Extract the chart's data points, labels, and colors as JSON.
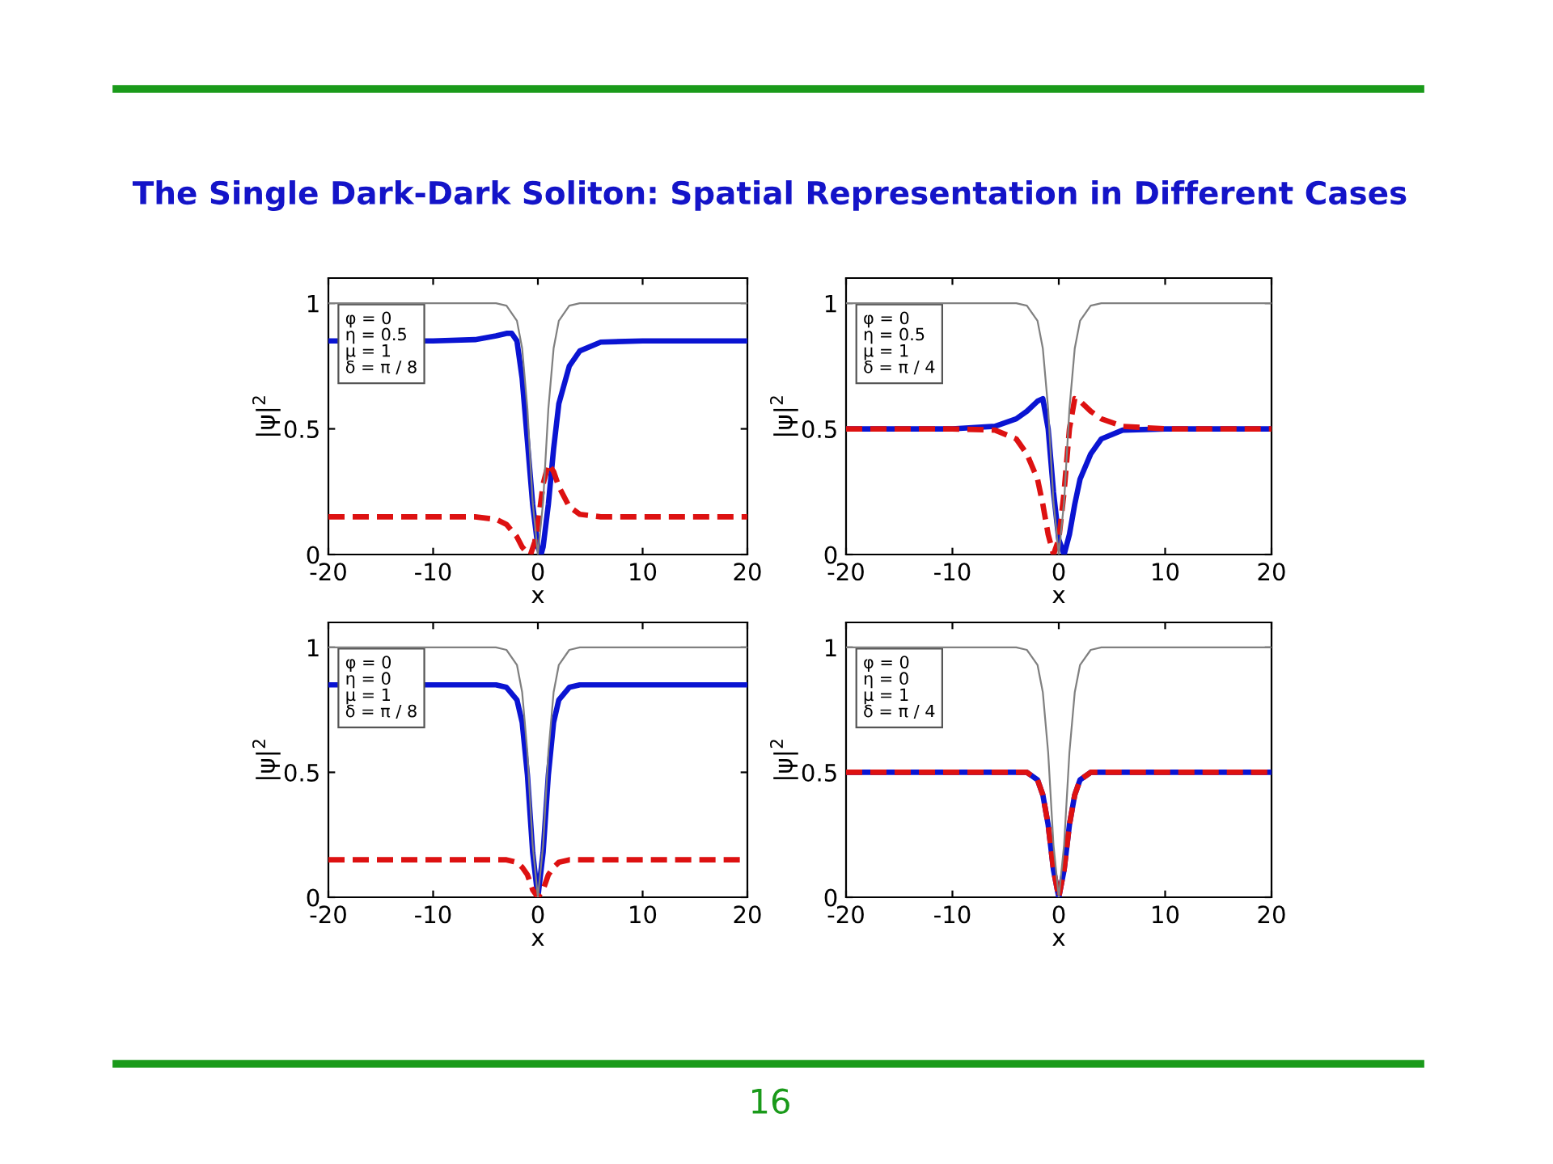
{
  "chart_data": [
    {
      "type": "line",
      "title": "The Single Dark-Dark Soliton: Spatial Representation in Different Cases",
      "xlabel": "x",
      "ylabel": "|ψ|$^{2}$",
      "xlim": [
        -20,
        20
      ],
      "ylim": [
        0,
        1.1
      ],
      "xticks": [
        -20,
        -10,
        0,
        10,
        20
      ],
      "yticks": [
        0,
        0.5,
        1
      ],
      "grid": false,
      "legend": false,
      "annotations": [
        "φ = 0",
        "η = 0.5",
        "μ = 1",
        "δ = π / 8"
      ],
      "series": [
        {
          "color": "#808080",
          "line_style": "solid",
          "x": [
            -20,
            -10,
            -4,
            -3,
            -2,
            -1.5,
            -1,
            -0.5,
            0,
            0.5,
            1,
            1.5,
            2,
            3,
            4,
            10,
            20
          ],
          "values": [
            1,
            1,
            1,
            0.99,
            0.93,
            0.82,
            0.58,
            0.21,
            0,
            0.21,
            0.58,
            0.82,
            0.93,
            0.99,
            1,
            1,
            1
          ]
        },
        {
          "color": "#0a14d2",
          "line_style": "solid",
          "x": [
            -20,
            -10,
            -6,
            -4,
            -3,
            -2.5,
            -2,
            -1.5,
            -1,
            -0.5,
            0,
            0.3,
            0.5,
            1,
            1.5,
            2,
            3,
            4,
            6,
            10,
            20
          ],
          "values": [
            0.85,
            0.85,
            0.855,
            0.87,
            0.88,
            0.88,
            0.85,
            0.7,
            0.45,
            0.2,
            0.03,
            0,
            0.03,
            0.2,
            0.42,
            0.6,
            0.75,
            0.81,
            0.845,
            0.85,
            0.85
          ]
        },
        {
          "color": "#dd1111",
          "line_style": "dashed",
          "x": [
            -20,
            -10,
            -6,
            -4,
            -3,
            -2,
            -1.5,
            -1,
            -0.7,
            -0.3,
            0,
            0.5,
            1,
            1.5,
            2,
            3,
            4,
            6,
            10,
            20
          ],
          "values": [
            0.15,
            0.15,
            0.15,
            0.14,
            0.12,
            0.07,
            0.03,
            0.005,
            0,
            0.05,
            0.12,
            0.28,
            0.36,
            0.33,
            0.27,
            0.19,
            0.16,
            0.15,
            0.15,
            0.15
          ]
        }
      ]
    },
    {
      "type": "line",
      "xlabel": "x",
      "ylabel": "|ψ|$^{2}$",
      "xlim": [
        -20,
        20
      ],
      "ylim": [
        0,
        1.1
      ],
      "xticks": [
        -20,
        -10,
        0,
        10,
        20
      ],
      "yticks": [
        0,
        0.5,
        1
      ],
      "grid": false,
      "legend": false,
      "annotations": [
        "φ = 0",
        "η = 0.5",
        "μ = 1",
        "δ = π / 4"
      ],
      "series": [
        {
          "color": "#808080",
          "line_style": "solid",
          "x": [
            -20,
            -10,
            -4,
            -3,
            -2,
            -1.5,
            -1,
            -0.5,
            0,
            0.5,
            1,
            1.5,
            2,
            3,
            4,
            10,
            20
          ],
          "values": [
            1,
            1,
            1,
            0.99,
            0.93,
            0.82,
            0.58,
            0.21,
            0,
            0.21,
            0.58,
            0.82,
            0.93,
            0.99,
            1,
            1,
            1
          ]
        },
        {
          "color": "#0a14d2",
          "line_style": "solid",
          "x": [
            -20,
            -10,
            -6,
            -4,
            -3,
            -2,
            -1.5,
            -1,
            -0.5,
            0,
            0.5,
            1,
            1.5,
            2,
            3,
            4,
            6,
            10,
            20
          ],
          "values": [
            0.5,
            0.5,
            0.51,
            0.54,
            0.57,
            0.61,
            0.62,
            0.5,
            0.25,
            0.06,
            0,
            0.08,
            0.2,
            0.3,
            0.4,
            0.46,
            0.495,
            0.5,
            0.5
          ]
        },
        {
          "color": "#dd1111",
          "line_style": "dashed",
          "x": [
            -20,
            -10,
            -6,
            -4,
            -3,
            -2,
            -1.5,
            -1,
            -0.5,
            0,
            0.5,
            1,
            1.5,
            2,
            3,
            4,
            6,
            10,
            20
          ],
          "values": [
            0.5,
            0.5,
            0.495,
            0.46,
            0.4,
            0.3,
            0.2,
            0.08,
            0,
            0.06,
            0.25,
            0.5,
            0.62,
            0.61,
            0.57,
            0.54,
            0.51,
            0.5,
            0.5
          ]
        }
      ]
    },
    {
      "type": "line",
      "xlabel": "x",
      "ylabel": "|ψ|$^{2}$",
      "xlim": [
        -20,
        20
      ],
      "ylim": [
        0,
        1.1
      ],
      "xticks": [
        -20,
        -10,
        0,
        10,
        20
      ],
      "yticks": [
        0,
        0.5,
        1
      ],
      "grid": false,
      "legend": false,
      "annotations": [
        "φ = 0",
        "η = 0",
        "μ = 1",
        "δ = π / 8"
      ],
      "series": [
        {
          "color": "#808080",
          "line_style": "solid",
          "x": [
            -20,
            -10,
            -4,
            -3,
            -2,
            -1.5,
            -1,
            -0.5,
            0,
            0.5,
            1,
            1.5,
            2,
            3,
            4,
            10,
            20
          ],
          "values": [
            1,
            1,
            1,
            0.99,
            0.93,
            0.82,
            0.58,
            0.21,
            0,
            0.21,
            0.58,
            0.82,
            0.93,
            0.99,
            1,
            1,
            1
          ]
        },
        {
          "color": "#0a14d2",
          "line_style": "solid",
          "x": [
            -20,
            -10,
            -4,
            -3,
            -2,
            -1.5,
            -1,
            -0.5,
            0,
            0.5,
            1,
            1.5,
            2,
            3,
            4,
            10,
            20
          ],
          "values": [
            0.85,
            0.85,
            0.85,
            0.84,
            0.79,
            0.7,
            0.49,
            0.18,
            0,
            0.18,
            0.49,
            0.7,
            0.79,
            0.84,
            0.85,
            0.85,
            0.85
          ]
        },
        {
          "color": "#dd1111",
          "line_style": "dashed",
          "x": [
            -20,
            -10,
            -4,
            -3,
            -2,
            -1.5,
            -1,
            -0.5,
            0,
            0.5,
            1,
            1.5,
            2,
            3,
            4,
            10,
            20
          ],
          "values": [
            0.15,
            0.15,
            0.15,
            0.15,
            0.14,
            0.12,
            0.09,
            0.03,
            0,
            0.03,
            0.09,
            0.12,
            0.14,
            0.15,
            0.15,
            0.15,
            0.15
          ]
        }
      ]
    },
    {
      "type": "line",
      "xlabel": "x",
      "ylabel": "|ψ|$^{2}$",
      "xlim": [
        -20,
        20
      ],
      "ylim": [
        0,
        1.1
      ],
      "xticks": [
        -20,
        -10,
        0,
        10,
        20
      ],
      "yticks": [
        0,
        0.5,
        1
      ],
      "grid": false,
      "legend": false,
      "annotations": [
        "φ = 0",
        "η = 0",
        "μ = 1",
        "δ = π / 4",
        "16"
      ],
      "series": [
        {
          "color": "#808080",
          "line_style": "solid",
          "x": [
            -20,
            -10,
            -4,
            -3,
            -2,
            -1.5,
            -1,
            -0.5,
            0,
            0.5,
            1,
            1.5,
            2,
            3,
            4,
            10,
            20
          ],
          "values": [
            1,
            1,
            1,
            0.99,
            0.93,
            0.82,
            0.58,
            0.21,
            0,
            0.21,
            0.58,
            0.82,
            0.93,
            0.99,
            1,
            1,
            1
          ]
        },
        {
          "color": "#0a14d2",
          "line_style": "solid",
          "x": [
            -20,
            -10,
            -4,
            -3,
            -2,
            -1.5,
            -1,
            -0.5,
            0,
            0.5,
            1,
            1.5,
            2,
            3,
            4,
            10,
            20
          ],
          "values": [
            0.5,
            0.5,
            0.5,
            0.5,
            0.47,
            0.41,
            0.29,
            0.11,
            0,
            0.11,
            0.29,
            0.41,
            0.47,
            0.5,
            0.5,
            0.5,
            0.5
          ]
        },
        {
          "color": "#dd1111",
          "line_style": "dashed",
          "x": [
            -20,
            -10,
            -4,
            -3,
            -2,
            -1.5,
            -1,
            -0.5,
            0,
            0.5,
            1,
            1.5,
            2,
            3,
            4,
            10,
            20
          ],
          "values": [
            0.5,
            0.5,
            0.5,
            0.5,
            0.47,
            0.41,
            0.29,
            0.11,
            0,
            0.11,
            0.29,
            0.41,
            0.47,
            0.5,
            0.5,
            0.5,
            0.5
          ]
        }
      ]
    }
  ]
}
